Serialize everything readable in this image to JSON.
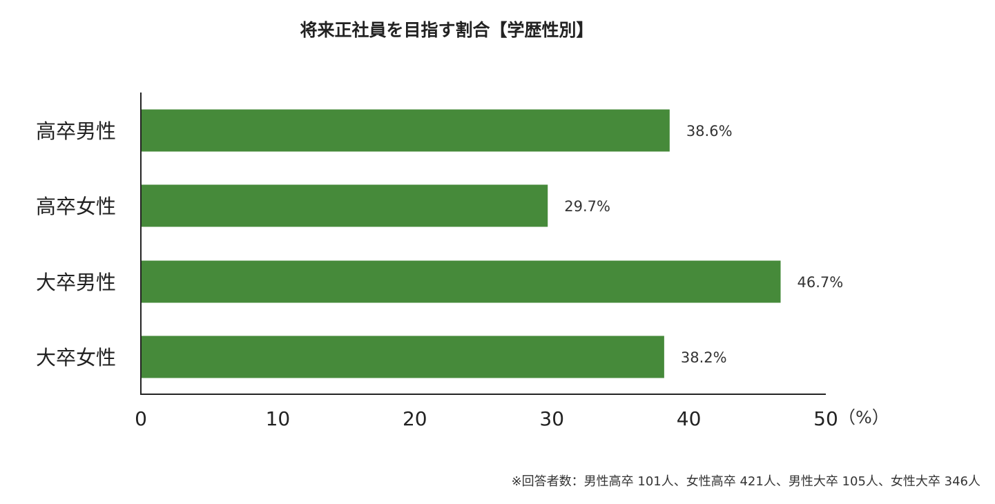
{
  "chart_data": {
    "type": "bar",
    "orientation": "horizontal",
    "title": "将来正社員を目指す割合【学歴性別】",
    "categories": [
      "高卒男性",
      "高卒女性",
      "大卒男性",
      "大卒女性"
    ],
    "values": [
      38.6,
      29.7,
      46.7,
      38.2
    ],
    "value_labels": [
      "38.6%",
      "29.7%",
      "46.7%",
      "38.2%"
    ],
    "xlim": [
      0,
      50
    ],
    "x_ticks": [
      0,
      10,
      20,
      30,
      40,
      50
    ],
    "x_tick_labels": [
      "0",
      "10",
      "20",
      "30",
      "40",
      "50"
    ],
    "unit_label": "（%）",
    "grid": false,
    "legend": "none",
    "bar_color": "#468a3a",
    "axis_color": "#222222",
    "footnote": "※回答者数：男性高卒 101人、女性高卒 421人、男性大卒 105人、女性大卒 346人"
  }
}
